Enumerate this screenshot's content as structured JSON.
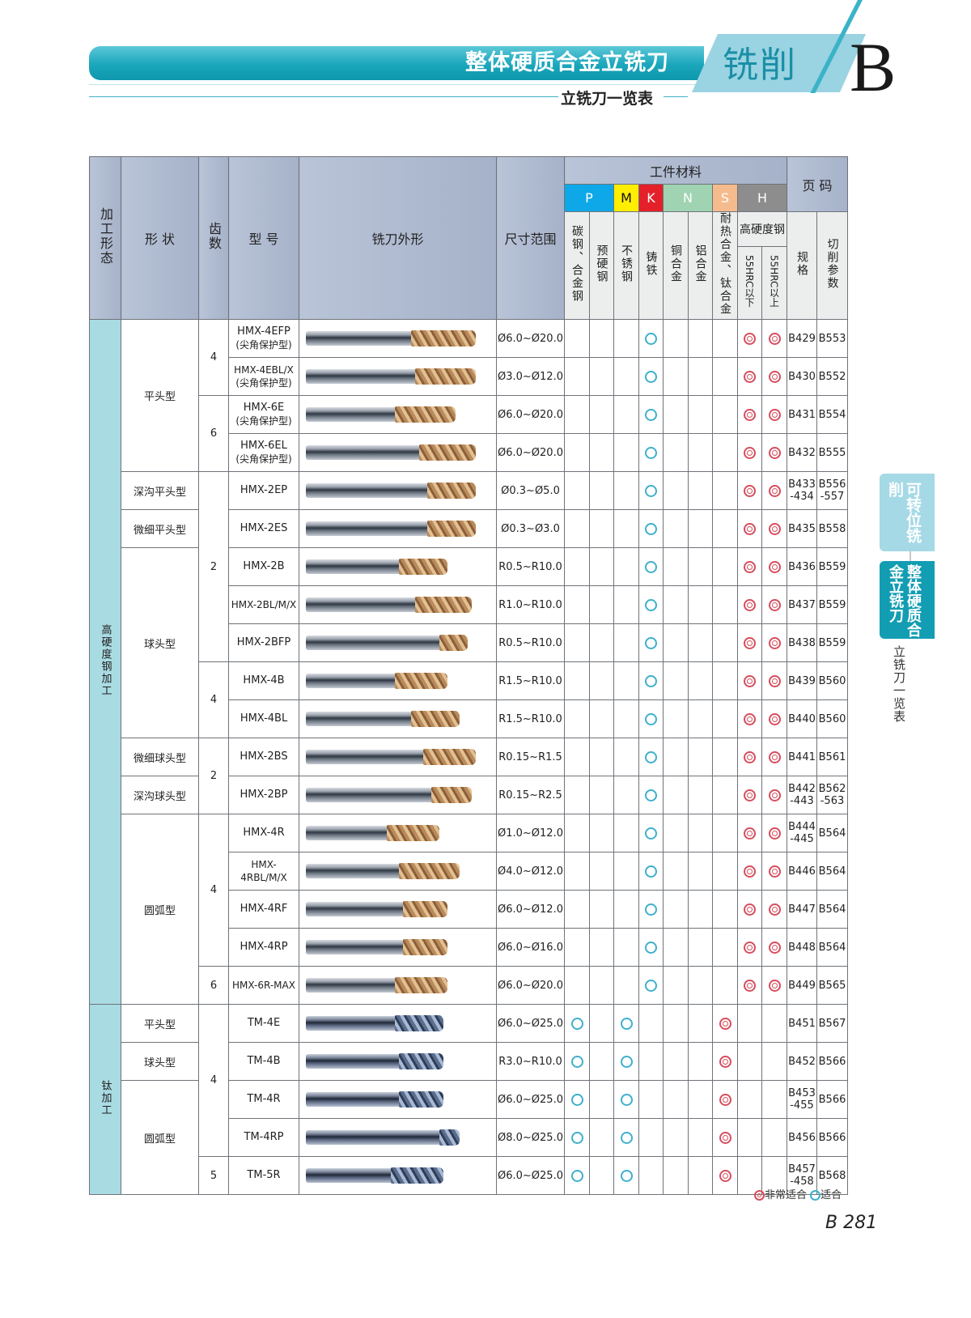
{
  "header": {
    "banner_title": "整体硬质合金立铣刀",
    "tab_label": "铣削",
    "section_letter": "B",
    "subtitle": "立铣刀一览表"
  },
  "table": {
    "headers": {
      "process": "加工形态",
      "shape": "形 状",
      "flutes": "齿数",
      "model": "型 号",
      "appearance": "铣刀外形",
      "size_range": "尺寸范围",
      "workpiece": "工件材料",
      "pages": "页 码",
      "iso": [
        "P",
        "M",
        "K",
        "N",
        "S",
        "H"
      ],
      "materials": [
        "碳钢、合金钢",
        "预硬钢",
        "不锈钢",
        "铸铁",
        "铜合金",
        "铝合金",
        "耐热合金、钛合金"
      ],
      "hardened": "高硬度钢",
      "hardened_sub": [
        "55HRC以下",
        "55HRC以上"
      ],
      "spec": "规格",
      "cutting": "切削参数"
    },
    "groups": [
      {
        "label": "高硬度钢加工"
      },
      {
        "label": "钛加工"
      }
    ],
    "shapes": [
      "平头型",
      "深沟平头型",
      "微细平头型",
      "球头型",
      "微细球头型",
      "深沟球头型",
      "圆弧型",
      "平头型",
      "球头型",
      "圆弧型"
    ],
    "flute_groups": [
      "4",
      "6",
      "2",
      "4",
      "2",
      "4",
      "6",
      "4",
      "5"
    ],
    "rows": [
      {
        "model": "HMX-4EFP",
        "note": "(尖角保护型)",
        "range": "Ø6.0~Ø20.0",
        "spec": "B429",
        "cut": "B553"
      },
      {
        "model": "HMX-4EBL/X",
        "note": "(尖角保护型)",
        "range": "Ø3.0~Ø12.0",
        "spec": "B430",
        "cut": "B552"
      },
      {
        "model": "HMX-6E",
        "note": "(尖角保护型)",
        "range": "Ø6.0~Ø20.0",
        "spec": "B431",
        "cut": "B554"
      },
      {
        "model": "HMX-6EL",
        "note": "(尖角保护型)",
        "range": "Ø6.0~Ø20.0",
        "spec": "B432",
        "cut": "B555"
      },
      {
        "model": "HMX-2EP",
        "note": "",
        "range": "Ø0.3~Ø5.0",
        "spec": "B433\n-434",
        "cut": "B556\n-557"
      },
      {
        "model": "HMX-2ES",
        "note": "",
        "range": "Ø0.3~Ø3.0",
        "spec": "B435",
        "cut": "B558"
      },
      {
        "model": "HMX-2B",
        "note": "",
        "range": "R0.5~R10.0",
        "spec": "B436",
        "cut": "B559"
      },
      {
        "model": "HMX-2BL/M/X",
        "note": "",
        "range": "R1.0~R10.0",
        "spec": "B437",
        "cut": "B559"
      },
      {
        "model": "HMX-2BFP",
        "note": "",
        "range": "R0.5~R10.0",
        "spec": "B438",
        "cut": "B559"
      },
      {
        "model": "HMX-4B",
        "note": "",
        "range": "R1.5~R10.0",
        "spec": "B439",
        "cut": "B560"
      },
      {
        "model": "HMX-4BL",
        "note": "",
        "range": "R1.5~R10.0",
        "spec": "B440",
        "cut": "B560"
      },
      {
        "model": "HMX-2BS",
        "note": "",
        "range": "R0.15~R1.5",
        "spec": "B441",
        "cut": "B561"
      },
      {
        "model": "HMX-2BP",
        "note": "",
        "range": "R0.15~R2.5",
        "spec": "B442\n-443",
        "cut": "B562\n-563"
      },
      {
        "model": "HMX-4R",
        "note": "",
        "range": "Ø1.0~Ø12.0",
        "spec": "B444\n-445",
        "cut": "B564"
      },
      {
        "model": "HMX-4RBL/M/X",
        "note": "",
        "range": "Ø4.0~Ø12.0",
        "spec": "B446",
        "cut": "B564"
      },
      {
        "model": "HMX-4RF",
        "note": "",
        "range": "Ø6.0~Ø12.0",
        "spec": "B447",
        "cut": "B564"
      },
      {
        "model": "HMX-4RP",
        "note": "",
        "range": "Ø6.0~Ø16.0",
        "spec": "B448",
        "cut": "B564"
      },
      {
        "model": "HMX-6R-MAX",
        "note": "",
        "range": "Ø6.0~Ø20.0",
        "spec": "B449",
        "cut": "B565"
      },
      {
        "model": "TM-4E",
        "note": "",
        "range": "Ø6.0~Ø25.0",
        "spec": "B451",
        "cut": "B567"
      },
      {
        "model": "TM-4B",
        "note": "",
        "range": "R3.0~R10.0",
        "spec": "B452",
        "cut": "B566"
      },
      {
        "model": "TM-4R",
        "note": "",
        "range": "Ø6.0~Ø25.0",
        "spec": "B453\n-455",
        "cut": "B566"
      },
      {
        "model": "TM-4RP",
        "note": "",
        "range": "Ø8.0~Ø25.0",
        "spec": "B456",
        "cut": "B566"
      },
      {
        "model": "TM-5R",
        "note": "",
        "range": "Ø6.0~Ø25.0",
        "spec": "B457\n-458",
        "cut": "B568"
      }
    ],
    "suitability_pattern": {
      "hardened_steel_rows": {
        "铸铁": "suitable",
        "55HRC以下": "very_suitable",
        "55HRC以上": "very_suitable"
      },
      "titanium_rows": {
        "碳钢、合金钢": "suitable",
        "不锈钢": "suitable",
        "耐热合金、钛合金": "very_suitable"
      }
    }
  },
  "legend": {
    "very_suitable": "非常适合",
    "suitable": "适合"
  },
  "side_nav": {
    "tab1": "可转位铣削",
    "tab2": "整体硬质合金立铣刀",
    "caption": "立铣刀一览表"
  },
  "page_number": "B 281",
  "colors": {
    "banner": "#1aa6bb",
    "header_bg": "#afbbd1",
    "group_bg": "#a9dbe3",
    "iso_P": "#0ea8e8",
    "iso_M": "#ffee00",
    "iso_K": "#e4202a",
    "iso_N": "#9fd3b2",
    "iso_S": "#f6bb8d",
    "iso_H": "#8d8d8d",
    "mark_suitable": "#3fb0cc",
    "mark_very_suitable": "#d64e5d"
  }
}
